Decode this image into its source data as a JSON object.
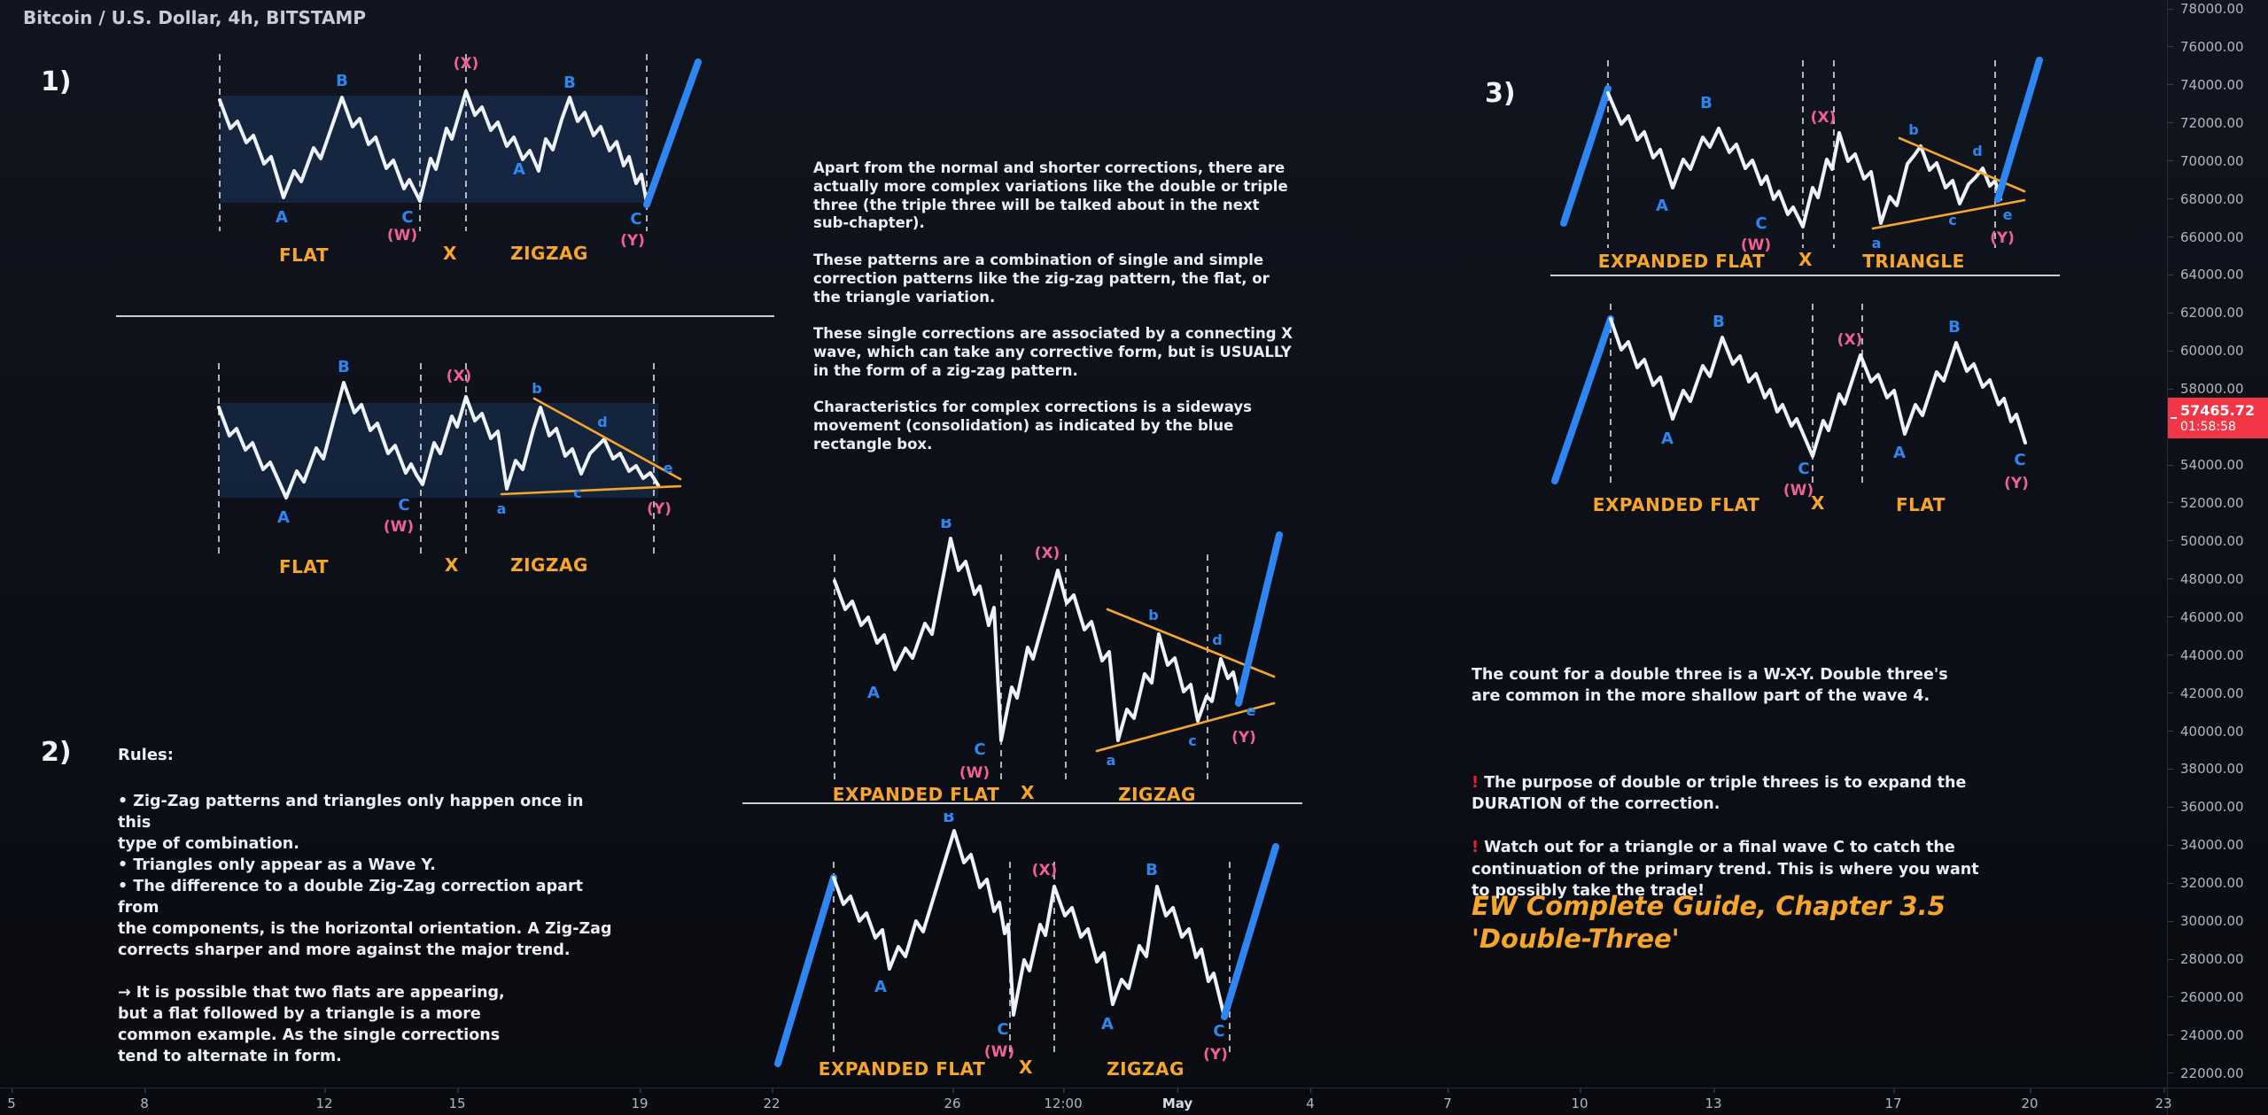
{
  "header": {
    "title": "Bitcoin / U.S. Dollar, 4h, BITSTAMP"
  },
  "colors": {
    "accent_blue": "#2e86f5",
    "orange": "#f7a62b",
    "pink": "#f25f93",
    "tag_red": "#f23645",
    "wave": "#eef3fa"
  },
  "price_axis": {
    "labels": [
      "78000.00",
      "76000.00",
      "74000.00",
      "72000.00",
      "70000.00",
      "68000.00",
      "66000.00",
      "64000.00",
      "62000.00",
      "60000.00",
      "58000.00",
      "56000.00",
      "54000.00",
      "52000.00",
      "50000.00",
      "48000.00",
      "46000.00",
      "44000.00",
      "42000.00",
      "40000.00",
      "38000.00",
      "36000.00",
      "34000.00",
      "32000.00",
      "30000.00",
      "28000.00",
      "26000.00",
      "24000.00",
      "22000.00"
    ]
  },
  "time_axis": {
    "labels": [
      "5",
      "8",
      "12",
      "15",
      "19",
      "22",
      "26",
      "12:00",
      "May",
      "4",
      "7",
      "10",
      "13",
      "17",
      "20",
      "23"
    ]
  },
  "price_tag": {
    "price": "57465.72",
    "countdown": "01:58:58"
  },
  "sections": {
    "one": "1)",
    "two": "2)",
    "three": "3)"
  },
  "texts": {
    "center": "Apart from the normal and shorter corrections, there are\nactually more complex variations like the double or triple\nthree (the triple three will be talked about in the next\nsub-chapter).\n\nThese patterns are a combination of single and simple\ncorrection patterns like the zig-zag pattern, the flat, or\nthe triangle variation.\n\nThese single corrections are associated by a connecting X\nwave, which can take any corrective form, but is USUALLY\nin the form of a zig-zag pattern.\n\nCharacteristics for complex corrections is a sideways\nmovement (consolidation) as indicated by the blue\nrectangle box.",
    "rules_title": "Rules:",
    "rules_body": "• Zig-Zag patterns and triangles only happen once in this\ntype of combination.\n• Triangles only appear as a Wave Y.\n• The difference to a double Zig-Zag correction apart from\nthe components, is the horizontal orientation. A Zig-Zag\ncorrects sharper and more against the major trend.\n\n→ It is possible that two flats are appearing,\nbut a flat followed by a triangle is a more\ncommon example. As the single corrections\ntend to alternate in form.",
    "right_p1": "The count for a double three is a W-X-Y. Double three's\nare common in the more shallow part of the wave 4.",
    "excl": "!",
    "right_p2": " The purpose of double or triple threes is to expand the\nDURATION of the correction.",
    "right_p3": " Watch out for a triangle or a final wave C to catch the\ncontinuation of the primary trend. This is where you want\nto possibly take the trade!",
    "signature": "EW Complete Guide, Chapter 3.5\n'Double-Three'"
  },
  "diagrams": {
    "d1a": {
      "labels": {
        "a1": "A",
        "b1": "B",
        "c1": "C",
        "w": "(W)",
        "x": "(X)",
        "a2": "A",
        "b2": "B",
        "c2": "C",
        "y": "(Y)"
      },
      "row": {
        "l": "FLAT",
        "m": "X",
        "r": "ZIGZAG"
      }
    },
    "d1b": {
      "labels": {
        "a1": "A",
        "b1": "B",
        "c1": "C",
        "w": "(W)",
        "x": "(X)",
        "ta": "a",
        "tb": "b",
        "tc": "c",
        "td": "d",
        "te": "e",
        "y": "(Y)"
      },
      "row": {
        "l": "FLAT",
        "m": "X",
        "r": "ZIGZAG"
      }
    },
    "d2a": {
      "labels": {
        "a1": "A",
        "b1": "B",
        "c1": "C",
        "w": "(W)",
        "x": "(X)",
        "ta": "a",
        "tb": "b",
        "tc": "c",
        "td": "d",
        "te": "e",
        "y": "(Y)"
      },
      "row": {
        "l": "EXPANDED FLAT",
        "m": "X",
        "r": "ZIGZAG"
      }
    },
    "d2b": {
      "labels": {
        "a1": "A",
        "b1": "B",
        "c1": "C",
        "w": "(W)",
        "x": "(X)",
        "a2": "A",
        "b2": "B",
        "c2": "C",
        "y": "(Y)"
      },
      "row": {
        "l": "EXPANDED FLAT",
        "m": "X",
        "r": "ZIGZAG"
      }
    },
    "d3a": {
      "labels": {
        "a1": "A",
        "b1": "B",
        "c1": "C",
        "w": "(W)",
        "x": "(X)",
        "ta": "a",
        "tb": "b",
        "tc": "c",
        "td": "d",
        "te": "e",
        "y": "(Y)"
      },
      "row": {
        "l": "EXPANDED FLAT",
        "m": "X",
        "r": "TRIANGLE"
      }
    },
    "d3b": {
      "labels": {
        "a1": "A",
        "b1": "B",
        "c1": "C",
        "w": "(W)",
        "x": "(X)",
        "a2": "A",
        "b2": "B",
        "c2": "C",
        "y": "(Y)"
      },
      "row": {
        "l": "EXPANDED FLAT",
        "m": "X",
        "r": "FLAT"
      }
    }
  }
}
